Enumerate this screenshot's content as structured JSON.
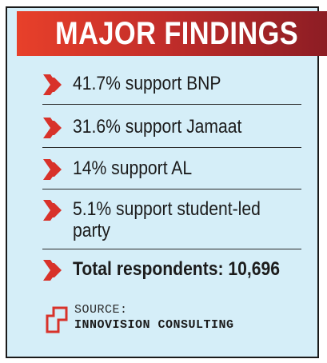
{
  "header": {
    "title": "MAJOR FINDINGS"
  },
  "findings": [
    {
      "icon": "double-chevron-right-icon",
      "text": "41.7% support BNP"
    },
    {
      "icon": "double-chevron-right-icon",
      "text": "31.6% support Jamaat"
    },
    {
      "icon": "double-chevron-right-icon",
      "text": "14% support AL"
    },
    {
      "icon": "double-chevron-right-icon",
      "text_line1": "5.1% support student-led",
      "text_line2": "party"
    },
    {
      "icon": "double-chevron-right-icon",
      "text": "Total respondents: 10,696"
    }
  ],
  "source": {
    "icon": "source-bracket-icon",
    "label": "SOURCE:",
    "name": "INNOVISION CONSULTING"
  },
  "colors": {
    "background": "#d5eef8",
    "header_start": "#e8402a",
    "header_end": "#8a1c24",
    "bullet": "#d8322a",
    "text": "#1c1c1c"
  }
}
